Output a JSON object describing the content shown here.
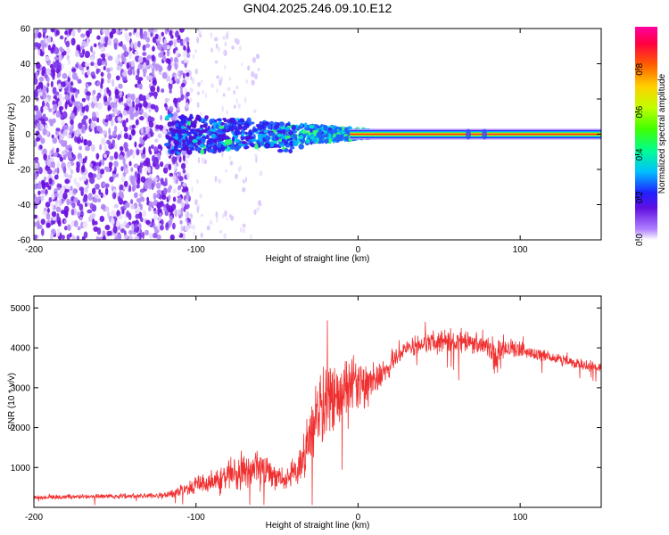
{
  "title": "GN04.2025.246.09.10.E12",
  "colors": {
    "snr_line": "#f03030",
    "center_line": "#ff4020",
    "scatter": "#7020e0",
    "scatter_light": "#d8c0f8",
    "axes": "#000000"
  },
  "chart_data": [
    {
      "type": "heatmap",
      "title": "GN04.2025.246.09.10.E12",
      "xlabel": "Height of straight line (km)",
      "ylabel": "Frequency (Hz)",
      "xlim": [
        -200,
        150
      ],
      "ylim": [
        -60,
        60
      ],
      "xticks": [
        -200,
        -100,
        0,
        100
      ],
      "yticks": [
        -60,
        -40,
        -20,
        0,
        20,
        40,
        60
      ],
      "colorbar": {
        "label": "Normalized spectral amplitude",
        "range": [
          0,
          1
        ],
        "ticks": [
          0,
          0.2,
          0.4,
          0.6,
          0.8
        ],
        "tick_labels": [
          "0.0",
          "0.2",
          "0.4",
          "0.6",
          "0.8"
        ],
        "colormap": "rainbow"
      },
      "features": {
        "noise_region_km": [
          -200,
          -112
        ],
        "sparse_region_km": [
          -112,
          -60
        ],
        "signal_band_km": [
          -118,
          10
        ],
        "steady_tone_km": [
          -5,
          150
        ],
        "steady_tone_hz": 0
      }
    },
    {
      "type": "line",
      "xlabel": "Height of straight line (km)",
      "ylabel": "SNR (10 * v/v)",
      "xlim": [
        -200,
        150
      ],
      "ylim": [
        0,
        5300
      ],
      "xticks": [
        -200,
        -100,
        0,
        100
      ],
      "yticks": [
        1000,
        2000,
        3000,
        4000,
        5000
      ],
      "series": [
        {
          "name": "SNR",
          "x": [
            -200,
            -150,
            -120,
            -110,
            -100,
            -80,
            -60,
            -45,
            -35,
            -28,
            -20,
            -10,
            0,
            10,
            20,
            30,
            40,
            50,
            60,
            70,
            80,
            85,
            90,
            100,
            110,
            120,
            130,
            140,
            150
          ],
          "y": [
            250,
            280,
            300,
            400,
            550,
            800,
            1000,
            700,
            1000,
            2200,
            2600,
            2800,
            3000,
            3200,
            3600,
            4000,
            4100,
            4150,
            4200,
            4150,
            4100,
            3800,
            4000,
            3950,
            3850,
            3750,
            3650,
            3550,
            3500
          ],
          "noise_amplitude": [
            60,
            70,
            80,
            150,
            250,
            450,
            550,
            300,
            500,
            900,
            1000,
            900,
            800,
            450,
            300,
            250,
            250,
            280,
            300,
            280,
            300,
            600,
            250,
            200,
            170,
            150,
            140,
            140,
            140
          ]
        }
      ]
    }
  ]
}
